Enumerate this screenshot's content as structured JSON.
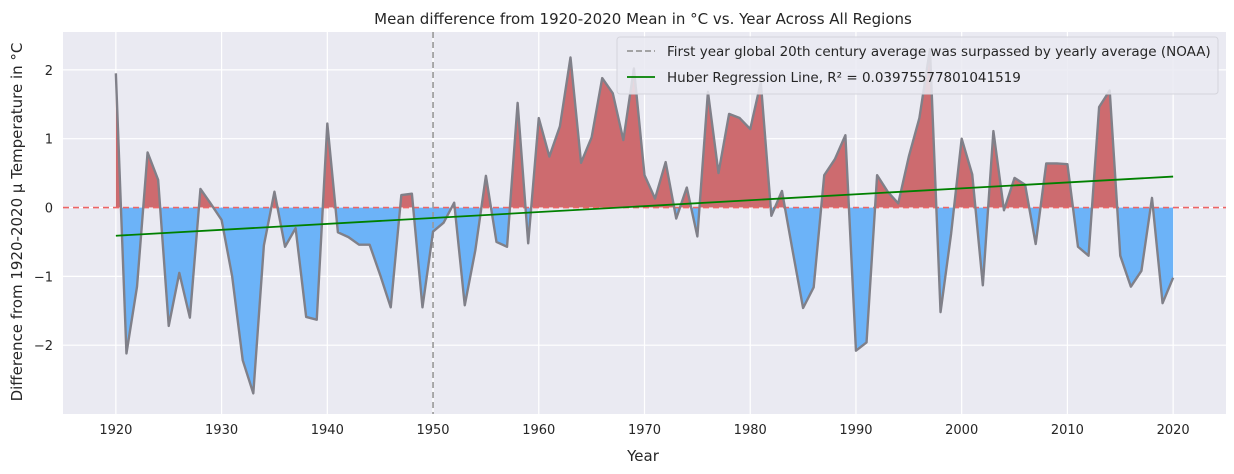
{
  "chart_data": {
    "type": "area",
    "title": "Mean difference from 1920-2020 Mean in °C vs. Year Across All Regions",
    "xlabel": "Year",
    "ylabel": "Difference from 1920-2020 μ Temperature in °C",
    "xlim": [
      1915,
      2025
    ],
    "ylim": [
      -3.0,
      2.55
    ],
    "xticks": [
      1920,
      1930,
      1940,
      1950,
      1960,
      1970,
      1980,
      1990,
      2000,
      2010,
      2020
    ],
    "yticks": [
      -2,
      -1,
      0,
      1,
      2
    ],
    "grid": true,
    "legend_position": "top-right",
    "x": [
      1920,
      1921,
      1922,
      1923,
      1924,
      1925,
      1926,
      1927,
      1928,
      1929,
      1930,
      1931,
      1932,
      1933,
      1934,
      1935,
      1936,
      1937,
      1938,
      1939,
      1940,
      1941,
      1942,
      1943,
      1944,
      1945,
      1946,
      1947,
      1948,
      1949,
      1950,
      1951,
      1952,
      1953,
      1954,
      1955,
      1956,
      1957,
      1958,
      1959,
      1960,
      1961,
      1962,
      1963,
      1964,
      1965,
      1966,
      1967,
      1968,
      1969,
      1970,
      1971,
      1972,
      1973,
      1974,
      1975,
      1976,
      1977,
      1978,
      1979,
      1980,
      1981,
      1982,
      1983,
      1984,
      1985,
      1986,
      1987,
      1988,
      1989,
      1990,
      1991,
      1992,
      1993,
      1994,
      1995,
      1996,
      1997,
      1998,
      1999,
      2000,
      2001,
      2002,
      2003,
      2004,
      2005,
      2006,
      2007,
      2008,
      2009,
      2010,
      2011,
      2012,
      2013,
      2014,
      2015,
      2016,
      2017,
      2018,
      2019,
      2020
    ],
    "y": [
      1.95,
      -2.12,
      -1.15,
      0.8,
      0.4,
      -1.72,
      -0.95,
      -1.6,
      0.27,
      0.05,
      -0.18,
      -1.0,
      -2.22,
      -2.7,
      -0.55,
      0.23,
      -0.57,
      -0.3,
      -1.59,
      -1.63,
      1.22,
      -0.36,
      -0.43,
      -0.54,
      -0.54,
      -0.98,
      -1.45,
      0.18,
      0.2,
      -1.45,
      -0.35,
      -0.22,
      0.07,
      -1.42,
      -0.62,
      0.46,
      -0.5,
      -0.57,
      1.52,
      -0.52,
      1.3,
      0.74,
      1.18,
      2.18,
      0.65,
      1.02,
      1.88,
      1.66,
      0.98,
      2.02,
      0.47,
      0.13,
      0.66,
      -0.16,
      0.29,
      -0.42,
      1.68,
      0.5,
      1.36,
      1.3,
      1.14,
      1.82,
      -0.12,
      0.24,
      -0.62,
      -1.46,
      -1.16,
      0.47,
      0.7,
      1.05,
      -2.08,
      -1.96,
      0.47,
      0.23,
      0.06,
      0.74,
      1.3,
      2.3,
      -1.52,
      -0.38,
      1.0,
      0.48,
      -1.13,
      1.11,
      -0.04,
      0.43,
      0.33,
      -0.53,
      0.64,
      0.64,
      0.63,
      -0.57,
      -0.7,
      1.46,
      1.7,
      -0.7,
      -1.15,
      -0.92,
      0.14,
      -1.39,
      -1.02
    ],
    "reference_lines": [
      {
        "orientation": "horizontal",
        "value": 0,
        "color": "#ee6666",
        "style": "dashed"
      },
      {
        "orientation": "vertical",
        "value": 1950,
        "color": "#999999",
        "style": "dashed"
      }
    ],
    "regression": {
      "x_start": 1920,
      "y_start": -0.41,
      "x_end": 2020,
      "y_end": 0.45,
      "color": "#008000"
    },
    "legend": [
      {
        "label": "First year global 20th century average was surpassed by yearly average (NOAA)",
        "style": "dashed",
        "color": "#999999"
      },
      {
        "label": "Huber Regression Line, R² = 0.03975577801041519",
        "style": "solid",
        "color": "#008000"
      }
    ],
    "colors": {
      "positive_fill": "#cd6b6f",
      "negative_fill": "#6cb3f8",
      "outline": "#808089",
      "plot_background": "#eaeaf2",
      "grid": "#ffffff"
    }
  }
}
